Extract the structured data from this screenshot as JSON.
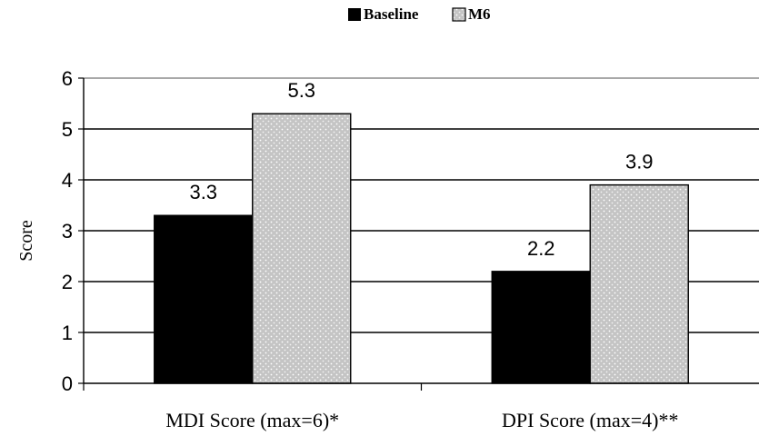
{
  "chart_data": {
    "type": "bar",
    "title": "",
    "xlabel": "",
    "ylabel": "Score",
    "ylim": [
      0,
      6
    ],
    "yticks": [
      "0",
      "1",
      "2",
      "3",
      "4",
      "5",
      "6"
    ],
    "categories": [
      "MDI Score (max=6)*",
      "DPI Score (max=4)**"
    ],
    "series": [
      {
        "name": "Baseline",
        "values": [
          3.3,
          2.2
        ],
        "labels": [
          "3.3",
          "2.2"
        ],
        "color": "#000000"
      },
      {
        "name": "M6",
        "values": [
          5.3,
          3.9
        ],
        "labels": [
          "5.3",
          "3.9"
        ],
        "color": "#c8c8c8",
        "pattern": "dotted"
      }
    ],
    "legend": "top",
    "grid": true
  }
}
